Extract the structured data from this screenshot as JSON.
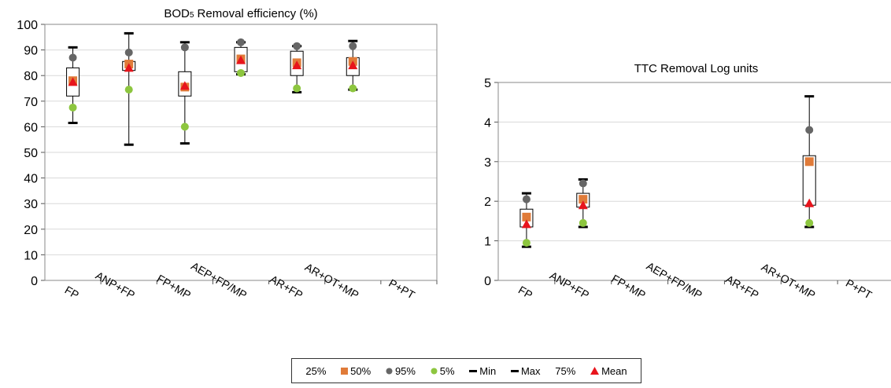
{
  "chart_data": [
    {
      "type": "box",
      "title": "BOD5 Removal efficiency (%)",
      "ylim": [
        0,
        100
      ],
      "yticks": [
        0,
        10,
        20,
        30,
        40,
        50,
        60,
        70,
        80,
        90,
        100
      ],
      "categories": [
        "FP",
        "ANP+FP",
        "FP+MP",
        "AEP+FP/MP",
        "AR+FP",
        "AR+OT+MP",
        "P+PT"
      ],
      "boxes": [
        {
          "category": "FP",
          "p25": 72,
          "p50": 78,
          "p95": 87,
          "p5": 67.5,
          "min": 61.5,
          "max": 91,
          "p75": 83,
          "mean": 77.5
        },
        {
          "category": "ANP+FP",
          "p25": 82,
          "p50": 84.5,
          "p95": 89,
          "p5": 74.5,
          "min": 53,
          "max": 96.5,
          "p75": 85.5,
          "mean": 83
        },
        {
          "category": "FP+MP",
          "p25": 72,
          "p50": 75.5,
          "p95": 91,
          "p5": 60,
          "min": 53.5,
          "max": 93,
          "p75": 81.5,
          "mean": 76
        },
        {
          "category": "AEP+FP/MP",
          "p25": 81.5,
          "p50": 86.5,
          "p95": 93,
          "p5": 81,
          "min": 80.5,
          "max": 93,
          "p75": 91,
          "mean": 86
        },
        {
          "category": "AR+FP",
          "p25": 80,
          "p50": 85,
          "p95": 91.5,
          "p5": 75,
          "min": 73.5,
          "max": 91.5,
          "p75": 89.5,
          "mean": 84
        },
        {
          "category": "AR+OT+MP",
          "p25": 80,
          "p50": 85.5,
          "p95": 91.5,
          "p5": 75,
          "min": 74.5,
          "max": 93.5,
          "p75": 87,
          "mean": 84
        }
      ],
      "grid": true
    },
    {
      "type": "box",
      "title": "TTC Removal Log units",
      "ylim": [
        0,
        5
      ],
      "yticks": [
        0,
        1,
        2,
        3,
        4,
        5
      ],
      "categories": [
        "FP",
        "ANP+FP",
        "FP+MP",
        "AEP+FP/MP",
        "AR+FP",
        "AR+OT+MP",
        "P+PT"
      ],
      "boxes": [
        {
          "category": "FP",
          "p25": 1.35,
          "p50": 1.6,
          "p95": 2.05,
          "p5": 0.95,
          "min": 0.85,
          "max": 2.2,
          "p75": 1.8,
          "mean": 1.42
        },
        {
          "category": "ANP+FP",
          "p25": 1.85,
          "p50": 2.05,
          "p95": 2.45,
          "p5": 1.45,
          "min": 1.35,
          "max": 2.55,
          "p75": 2.2,
          "mean": 1.9
        },
        {
          "category": "AR+OT+MP",
          "p25": 1.9,
          "p50": 3.0,
          "p95": 3.8,
          "p5": 1.45,
          "min": 1.35,
          "max": 4.65,
          "p75": 3.15,
          "mean": 1.95
        }
      ],
      "grid": true
    }
  ],
  "legend": {
    "items": [
      {
        "label": "25%",
        "marker": "none"
      },
      {
        "label": "50%",
        "marker": "square"
      },
      {
        "label": "95%",
        "marker": "circle"
      },
      {
        "label": "5%",
        "marker": "circle"
      },
      {
        "label": "Min",
        "marker": "dash"
      },
      {
        "label": "Max",
        "marker": "dash"
      },
      {
        "label": "75%",
        "marker": "none"
      },
      {
        "label": "Mean",
        "marker": "triangle"
      }
    ]
  },
  "colors": {
    "p50": "#e07b39",
    "p95": "#666666",
    "p5": "#8dc63f",
    "mean": "#e8141c",
    "whisker": "#000000",
    "grid": "#d9d9d9",
    "plot_border": "#888888"
  }
}
